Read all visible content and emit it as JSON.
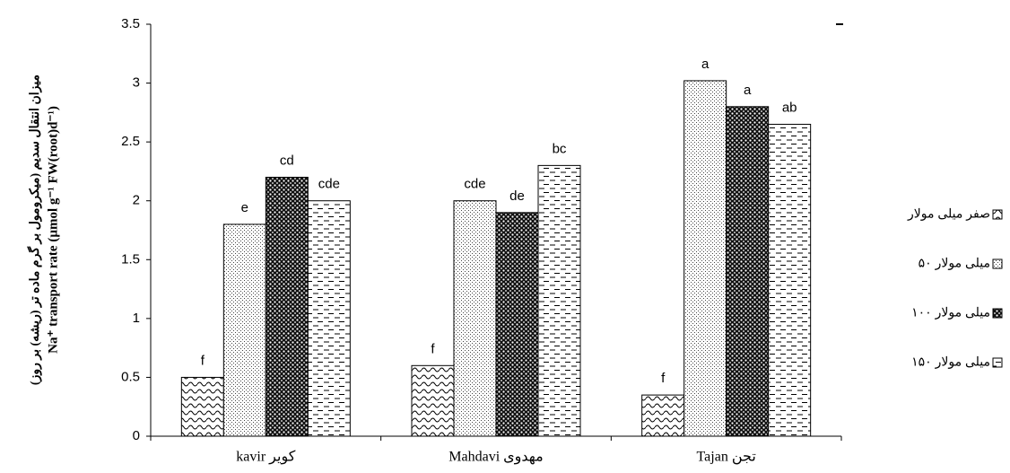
{
  "chart_data": {
    "type": "bar",
    "y_label": "میزان انتقال سدیم (میکرومول بر گرم ماده تر (ریشه) بر روز)",
    "y_label_2": "Na⁺ transport rate (µmol g⁻¹ FW(root)d⁻¹)",
    "categories": [
      "kavir کویر",
      "Mahdavi مهدوی",
      "Tajan تجن"
    ],
    "series": [
      {
        "name": "صفر میلی مولار",
        "color": "#000000",
        "values": [
          0.5,
          0.6,
          0.35
        ],
        "letters": [
          "f",
          "f",
          "f"
        ]
      },
      {
        "name": "۵۰ میلی مولار",
        "color": "#000000",
        "values": [
          1.8,
          2.0,
          3.02
        ],
        "letters": [
          "e",
          "cde",
          "a"
        ]
      },
      {
        "name": "۱۰۰ میلی مولار",
        "color": "#000000",
        "values": [
          2.2,
          1.9,
          2.8
        ],
        "letters": [
          "cd",
          "de",
          "a"
        ]
      },
      {
        "name": "۱۵۰ میلی مولار",
        "color": "#000000",
        "values": [
          2.0,
          2.3,
          2.65
        ],
        "letters": [
          "cde",
          "bc",
          "ab"
        ]
      }
    ],
    "ylim": [
      0,
      3.5
    ],
    "yticks": [
      0,
      0.5,
      1,
      1.5,
      2,
      2.5,
      3,
      3.5
    ],
    "grid": false,
    "legend": "right"
  }
}
